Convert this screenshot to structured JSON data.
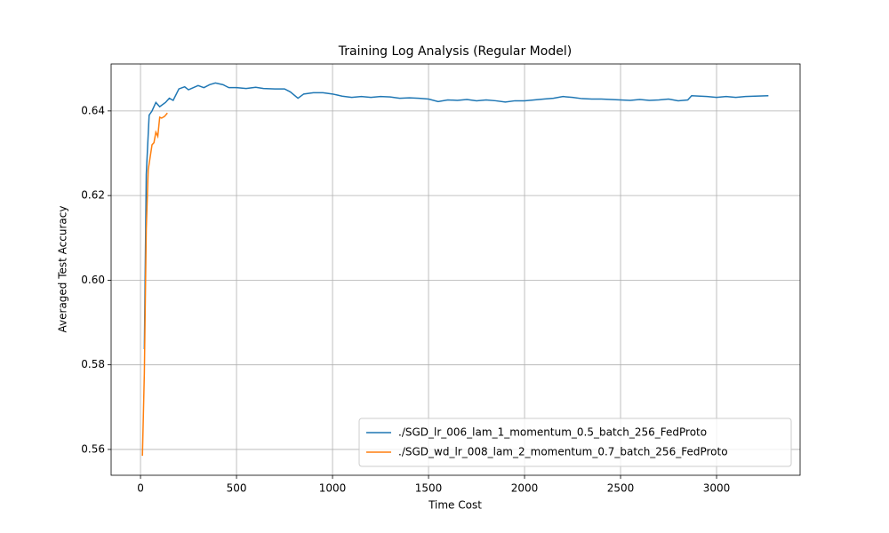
{
  "chart_data": {
    "type": "line",
    "title": "Training Log Analysis (Regular Model)",
    "x_label": "Time Cost",
    "y_label": "Averaged Test Accuracy",
    "xlim": [
      -153,
      3435
    ],
    "ylim": [
      0.5539,
      0.6511
    ],
    "xticks": [
      0,
      500,
      1000,
      1500,
      2000,
      2500,
      3000
    ],
    "yticks": [
      0.56,
      0.58,
      {
        "value": 0.6,
        "label": "0.60"
      },
      0.62,
      0.64
    ],
    "grid": true,
    "legend": "lower right",
    "series": [
      {
        "name": "./SGD_lr_006_lam_1_momentum_0.5_batch_256_FedProto",
        "color": "#1f77b4",
        "x": [
          20,
          30,
          45,
          60,
          80,
          100,
          130,
          150,
          170,
          200,
          230,
          250,
          300,
          330,
          360,
          390,
          430,
          460,
          500,
          550,
          600,
          640,
          700,
          750,
          780,
          820,
          850,
          900,
          950,
          1000,
          1050,
          1100,
          1150,
          1200,
          1250,
          1300,
          1350,
          1400,
          1450,
          1500,
          1550,
          1600,
          1650,
          1700,
          1750,
          1800,
          1850,
          1900,
          1950,
          2000,
          2050,
          2100,
          2150,
          2200,
          2250,
          2300,
          2350,
          2400,
          2450,
          2500,
          2550,
          2600,
          2650,
          2700,
          2750,
          2800,
          2850,
          2870,
          2950,
          3000,
          3050,
          3100,
          3150,
          3200,
          3270
        ],
        "values": [
          0.5837,
          0.625,
          0.639,
          0.64,
          0.642,
          0.641,
          0.642,
          0.643,
          0.6425,
          0.6452,
          0.6457,
          0.645,
          0.646,
          0.6455,
          0.6462,
          0.6466,
          0.6462,
          0.6455,
          0.6455,
          0.6453,
          0.6456,
          0.6453,
          0.6452,
          0.6452,
          0.6445,
          0.643,
          0.644,
          0.6443,
          0.6443,
          0.644,
          0.6435,
          0.6432,
          0.6434,
          0.6432,
          0.6434,
          0.6433,
          0.643,
          0.6431,
          0.643,
          0.6428,
          0.6422,
          0.6426,
          0.6425,
          0.6427,
          0.6424,
          0.6426,
          0.6424,
          0.6421,
          0.6424,
          0.6424,
          0.6426,
          0.6428,
          0.643,
          0.6434,
          0.6432,
          0.6429,
          0.6428,
          0.6428,
          0.6427,
          0.6426,
          0.6425,
          0.6427,
          0.6425,
          0.6426,
          0.6428,
          0.6424,
          0.6426,
          0.6436,
          0.6434,
          0.6432,
          0.6434,
          0.6432,
          0.6434,
          0.6435,
          0.6436
        ]
      },
      {
        "name": "./SGD_wd_lr_008_lam_2_momentum_0.7_batch_256_FedProto",
        "color": "#ff7f0e",
        "x": [
          10,
          20,
          30,
          40,
          50,
          60,
          70,
          80,
          90,
          100,
          110,
          125,
          140
        ],
        "values": [
          0.5585,
          0.578,
          0.612,
          0.626,
          0.629,
          0.632,
          0.6325,
          0.635,
          0.634,
          0.6385,
          0.6383,
          0.6387,
          0.6395
        ]
      }
    ]
  }
}
